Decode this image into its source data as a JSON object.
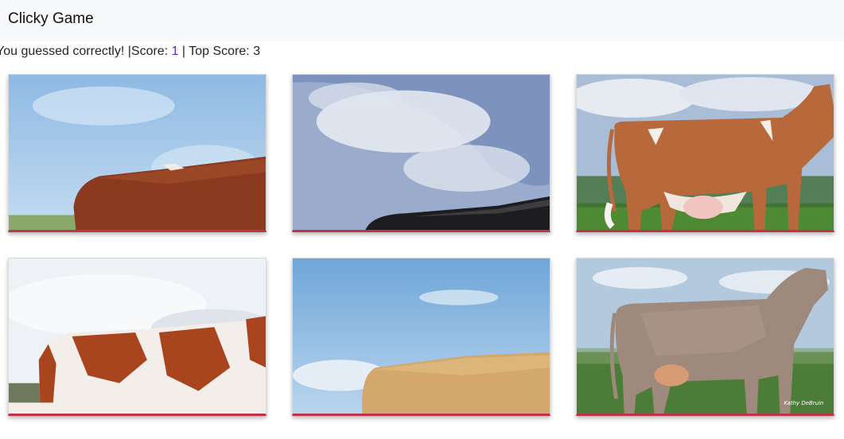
{
  "navbar": {
    "brand": "Clicky Game"
  },
  "status": {
    "message": "You guessed correctly!",
    "separator": "|",
    "score_label": "Score: ",
    "score": "1",
    "separator2": " | ",
    "top_score_label": "Top Score: ",
    "top_score": "3"
  },
  "cards": [
    {
      "icon": "cow-brown-rear-icon"
    },
    {
      "icon": "cow-black-back-icon"
    },
    {
      "icon": "cow-guernsey-icon"
    },
    {
      "icon": "cow-red-white-icon"
    },
    {
      "icon": "cow-tan-back-icon"
    },
    {
      "icon": "cow-jersey-icon"
    }
  ],
  "photo_credit": "Kathy DeBruin",
  "colors": {
    "card_border_accent": "#c0344a",
    "score_accent": "#4a2fd0",
    "navbar_bg": "#f8f9fa"
  }
}
